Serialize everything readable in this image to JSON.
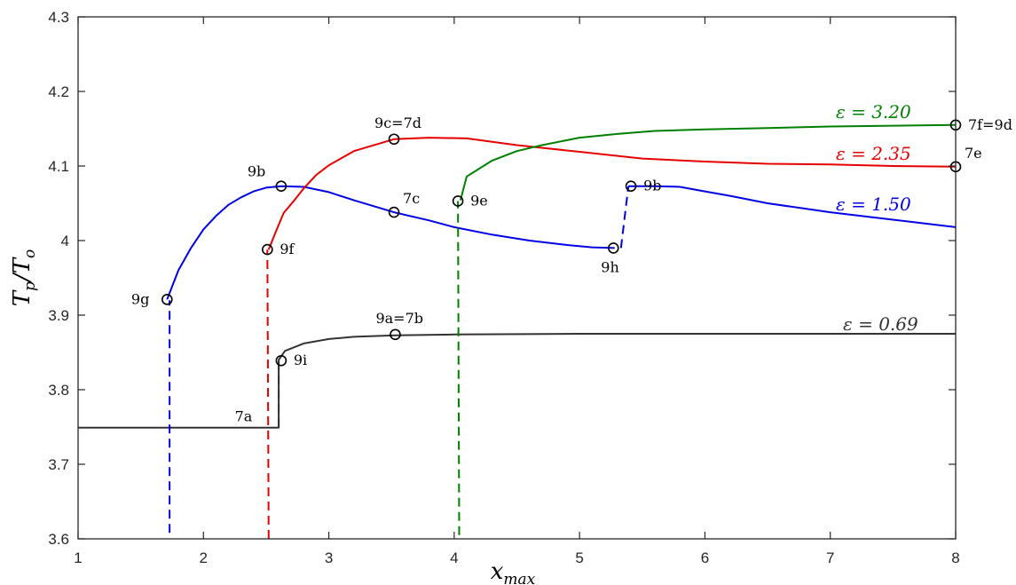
{
  "chart_data": {
    "type": "line",
    "xlabel": "x_max",
    "ylabel": "T_p/T_o",
    "xlim": [
      1,
      8
    ],
    "ylim": [
      3.6,
      4.3
    ],
    "xticks": [
      1,
      2,
      3,
      4,
      5,
      6,
      7,
      8
    ],
    "yticks": [
      3.6,
      3.7,
      3.8,
      3.9,
      4,
      4.1,
      4.2,
      4.3
    ],
    "ytick_labels": [
      "3.6",
      "3.7",
      "3.8",
      "3.9",
      "4",
      "4.1",
      "4.2",
      "4.3"
    ],
    "grid": false,
    "series": [
      {
        "name": "ε = 0.69",
        "label_sym": "ε",
        "label_val": "= 0.69",
        "color": "#333333",
        "dashed": [
          [
            2.6,
            3.75
          ],
          [
            2.6,
            3.84
          ]
        ],
        "solid": [
          [
            1.0,
            3.749
          ],
          [
            1.5,
            3.749
          ],
          [
            2.0,
            3.749
          ],
          [
            2.5,
            3.749
          ],
          [
            2.6,
            3.749
          ],
          [
            2.6,
            3.84
          ],
          [
            2.65,
            3.852
          ],
          [
            2.8,
            3.862
          ],
          [
            3.0,
            3.868
          ],
          [
            3.2,
            3.871
          ],
          [
            3.53,
            3.873
          ],
          [
            4.0,
            3.874
          ],
          [
            5.0,
            3.875
          ],
          [
            6.0,
            3.875
          ],
          [
            8.0,
            3.875
          ]
        ]
      },
      {
        "name": "ε = 1.50",
        "label_sym": "ε",
        "label_val": "= 1.50",
        "color": "#0000e6",
        "dashed": [
          [
            1.73,
            3.608
          ],
          [
            1.73,
            3.92
          ]
        ],
        "dashed2": [
          [
            5.33,
            3.99
          ],
          [
            5.39,
            4.073
          ]
        ],
        "solid": [
          [
            1.71,
            3.921
          ],
          [
            1.8,
            3.96
          ],
          [
            1.9,
            3.99
          ],
          [
            2.0,
            4.015
          ],
          [
            2.1,
            4.033
          ],
          [
            2.2,
            4.048
          ],
          [
            2.3,
            4.058
          ],
          [
            2.4,
            4.066
          ],
          [
            2.5,
            4.071
          ],
          [
            2.62,
            4.073
          ],
          [
            2.8,
            4.072
          ],
          [
            3.0,
            4.065
          ],
          [
            3.2,
            4.054
          ],
          [
            3.52,
            4.038
          ],
          [
            3.8,
            4.027
          ],
          [
            4.0,
            4.018
          ],
          [
            4.3,
            4.008
          ],
          [
            4.6,
            4.0
          ],
          [
            4.9,
            3.994
          ],
          [
            5.1,
            3.991
          ],
          [
            5.28,
            3.99
          ]
        ],
        "solid2": [
          [
            5.39,
            4.073
          ],
          [
            5.6,
            4.073
          ],
          [
            5.8,
            4.072
          ],
          [
            6.0,
            4.066
          ],
          [
            6.2,
            4.06
          ],
          [
            6.5,
            4.05
          ],
          [
            7.0,
            4.038
          ],
          [
            7.5,
            4.028
          ],
          [
            8.0,
            4.018
          ]
        ]
      },
      {
        "name": "ε = 2.35",
        "label_sym": "ε",
        "label_val": "= 2.35",
        "color": "#e60000",
        "dashed": [
          [
            2.52,
            3.6
          ],
          [
            2.51,
            3.988
          ]
        ],
        "solid": [
          [
            2.52,
            3.988
          ],
          [
            2.58,
            4.013
          ],
          [
            2.64,
            4.037
          ],
          [
            2.73,
            4.055
          ],
          [
            2.8,
            4.07
          ],
          [
            2.9,
            4.088
          ],
          [
            3.0,
            4.101
          ],
          [
            3.2,
            4.12
          ],
          [
            3.52,
            4.136
          ],
          [
            3.8,
            4.138
          ],
          [
            4.1,
            4.137
          ],
          [
            4.5,
            4.128
          ],
          [
            5.0,
            4.119
          ],
          [
            5.5,
            4.11
          ],
          [
            6.0,
            4.106
          ],
          [
            6.5,
            4.103
          ],
          [
            7.0,
            4.102
          ],
          [
            7.5,
            4.1
          ],
          [
            8.0,
            4.099
          ]
        ]
      },
      {
        "name": "ε = 3.20",
        "label_sym": "ε",
        "label_val": "= 3.20",
        "color": "#008000",
        "dashed": [
          [
            4.04,
            3.605
          ],
          [
            4.03,
            4.053
          ]
        ],
        "solid": [
          [
            4.05,
            4.054
          ],
          [
            4.1,
            4.086
          ],
          [
            4.3,
            4.107
          ],
          [
            4.5,
            4.12
          ],
          [
            4.7,
            4.128
          ],
          [
            5.0,
            4.138
          ],
          [
            5.3,
            4.143
          ],
          [
            5.6,
            4.147
          ],
          [
            6.0,
            4.149
          ],
          [
            6.5,
            4.151
          ],
          [
            7.0,
            4.153
          ],
          [
            7.5,
            4.154
          ],
          [
            8.0,
            4.155
          ]
        ]
      }
    ],
    "markers": [
      {
        "x": 1.71,
        "y": 3.921,
        "label": "9g",
        "pos": "left"
      },
      {
        "x": 2.62,
        "y": 4.073,
        "label": "9b",
        "pos": "upper-left"
      },
      {
        "x": 2.51,
        "y": 3.988,
        "label": "9f",
        "pos": "right"
      },
      {
        "x": 2.62,
        "y": 3.839,
        "label": "9i",
        "pos": "right"
      },
      {
        "x": 3.52,
        "y": 4.136,
        "label": "9c=7d",
        "pos": "above"
      },
      {
        "x": 3.52,
        "y": 4.038,
        "label": "7c",
        "pos": "upper-right"
      },
      {
        "x": 3.53,
        "y": 3.874,
        "label": "9a=7b",
        "pos": "above"
      },
      {
        "x": 4.03,
        "y": 4.053,
        "label": "9e",
        "pos": "right"
      },
      {
        "x": 5.27,
        "y": 3.99,
        "label": "9h",
        "pos": "below"
      },
      {
        "x": 5.41,
        "y": 4.073,
        "label": "9b",
        "pos": "right"
      },
      {
        "x": 8.0,
        "y": 4.155,
        "label": "7f=9d",
        "pos": "right"
      },
      {
        "x": 8.0,
        "y": 4.099,
        "label": "7e",
        "pos": "upper-right"
      }
    ],
    "annotations": [
      {
        "x": 2.25,
        "y": 3.758,
        "text": "7a"
      }
    ]
  }
}
